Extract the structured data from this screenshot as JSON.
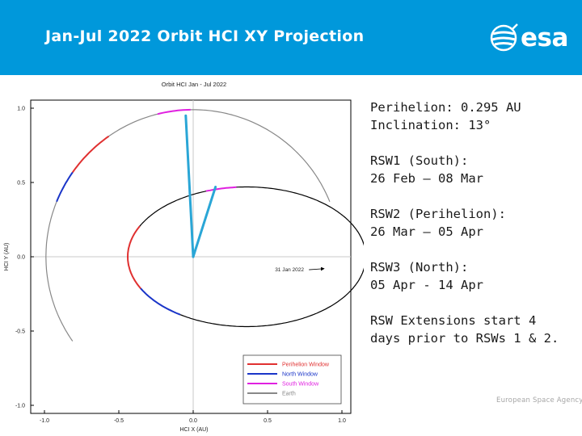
{
  "header": {
    "title": "Jan-Jul 2022 Orbit HCI XY Projection",
    "logo_text": "esa",
    "logo_icon": "esa-globe-icon",
    "background": "#0098db"
  },
  "chart_data": {
    "type": "line",
    "title": "Orbit HCI Jan - Jul 2022",
    "xlabel": "HCI X (AU)",
    "ylabel": "HCI Y (AU)",
    "xlim": [
      -1.05,
      1.05
    ],
    "ylim": [
      -1.05,
      1.05
    ],
    "xticks": [
      -1.0,
      -0.5,
      0.0,
      0.5,
      1.0
    ],
    "yticks": [
      1.0,
      0.5,
      0.0,
      -0.5,
      -1.0
    ],
    "xtick_labels": [
      "-1.0",
      "-0.5",
      "0.0",
      "0.5",
      "1.0"
    ],
    "ytick_labels": [
      "1.0",
      "0.5",
      "0.0",
      "-0.5",
      "-1.0"
    ],
    "grid": "zero-lines",
    "legend_placement": "bottom-right",
    "orbit": {
      "a": 0.8,
      "b": 0.47,
      "center": [
        0.36,
        0.0
      ],
      "color": "#000000"
    },
    "earth_arc": {
      "r": 0.99,
      "start_deg": 22,
      "end_deg": 215,
      "color": "#888888"
    },
    "series": [
      {
        "name": "Perihelion Window",
        "color": "#e03030",
        "segments": [
          {
            "path": "earth",
            "from_deg": 125,
            "to_deg": 145
          },
          {
            "path": "orbit",
            "from_deg": 154,
            "to_deg": 207
          }
        ]
      },
      {
        "name": "North Window",
        "color": "#1a35c8",
        "segments": [
          {
            "path": "earth",
            "from_deg": 145,
            "to_deg": 158
          },
          {
            "path": "orbit",
            "from_deg": 207,
            "to_deg": 236
          }
        ]
      },
      {
        "name": "South Window",
        "color": "#e020e0",
        "segments": [
          {
            "path": "earth",
            "from_deg": 91,
            "to_deg": 104
          },
          {
            "path": "orbit",
            "from_deg": 95,
            "to_deg": 110
          }
        ]
      },
      {
        "name": "Earth",
        "color": "#888888",
        "segments": []
      }
    ],
    "lines_of_sight": {
      "color": "#2aa6d6",
      "lines": [
        {
          "from": [
            0.0,
            0.0
          ],
          "to": [
            -0.05,
            0.95
          ]
        },
        {
          "from": [
            0.0,
            0.0
          ],
          "to": [
            0.15,
            0.47
          ]
        }
      ]
    },
    "annotations": [
      {
        "text": "31 Jan 2022",
        "x": 0.55,
        "y": -0.12,
        "arrow_to": [
          0.88,
          -0.08
        ]
      }
    ]
  },
  "notes": [
    "Perihelion: 0.295 AU\nInclination: 13°",
    "RSW1 (South):\n26 Feb – 08 Mar",
    "RSW2 (Perihelion):\n26 Mar – 05 Apr",
    "RSW3 (North):\n05 Apr - 14 Apr",
    "RSW Extensions start 4\ndays prior to RSWs 1 & 2."
  ],
  "footer": {
    "agency": "European Space Agency"
  }
}
